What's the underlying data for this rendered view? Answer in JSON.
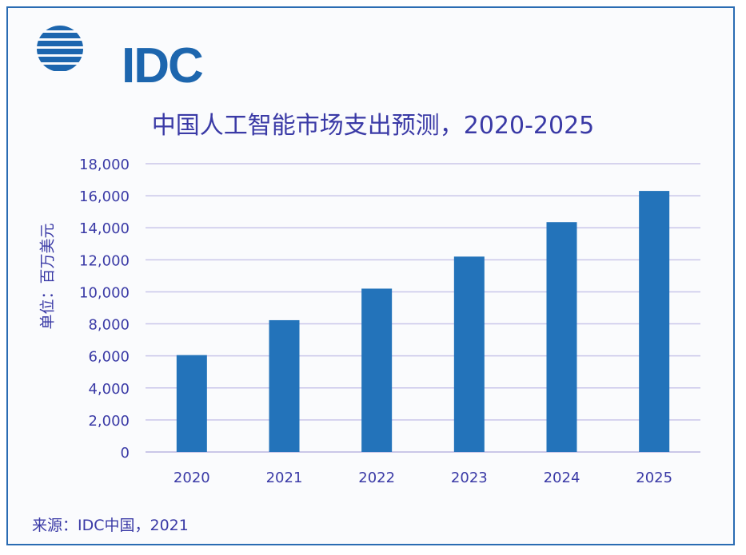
{
  "logo": {
    "text": "IDC"
  },
  "chart_data": {
    "type": "bar",
    "title": "中国人工智能市场支出预测，2020-2025",
    "xlabel": "",
    "ylabel": "单位：百万美元",
    "categories": [
      "2020",
      "2021",
      "2022",
      "2023",
      "2024",
      "2025"
    ],
    "values": [
      6050,
      8230,
      10200,
      12200,
      14350,
      16300
    ],
    "ylim": [
      0,
      18000
    ],
    "yticks": [
      0,
      2000,
      4000,
      6000,
      8000,
      10000,
      12000,
      14000,
      16000,
      18000
    ],
    "ytick_labels": [
      "0",
      "2,000",
      "4,000",
      "6,000",
      "8,000",
      "10,000",
      "12,000",
      "14,000",
      "16,000",
      "18,000"
    ],
    "grid": true,
    "bar_color": "#2373ba",
    "grid_color": "#c9c6ea",
    "text_color": "#3a3aa6"
  },
  "source": "来源：IDC中国，2021"
}
